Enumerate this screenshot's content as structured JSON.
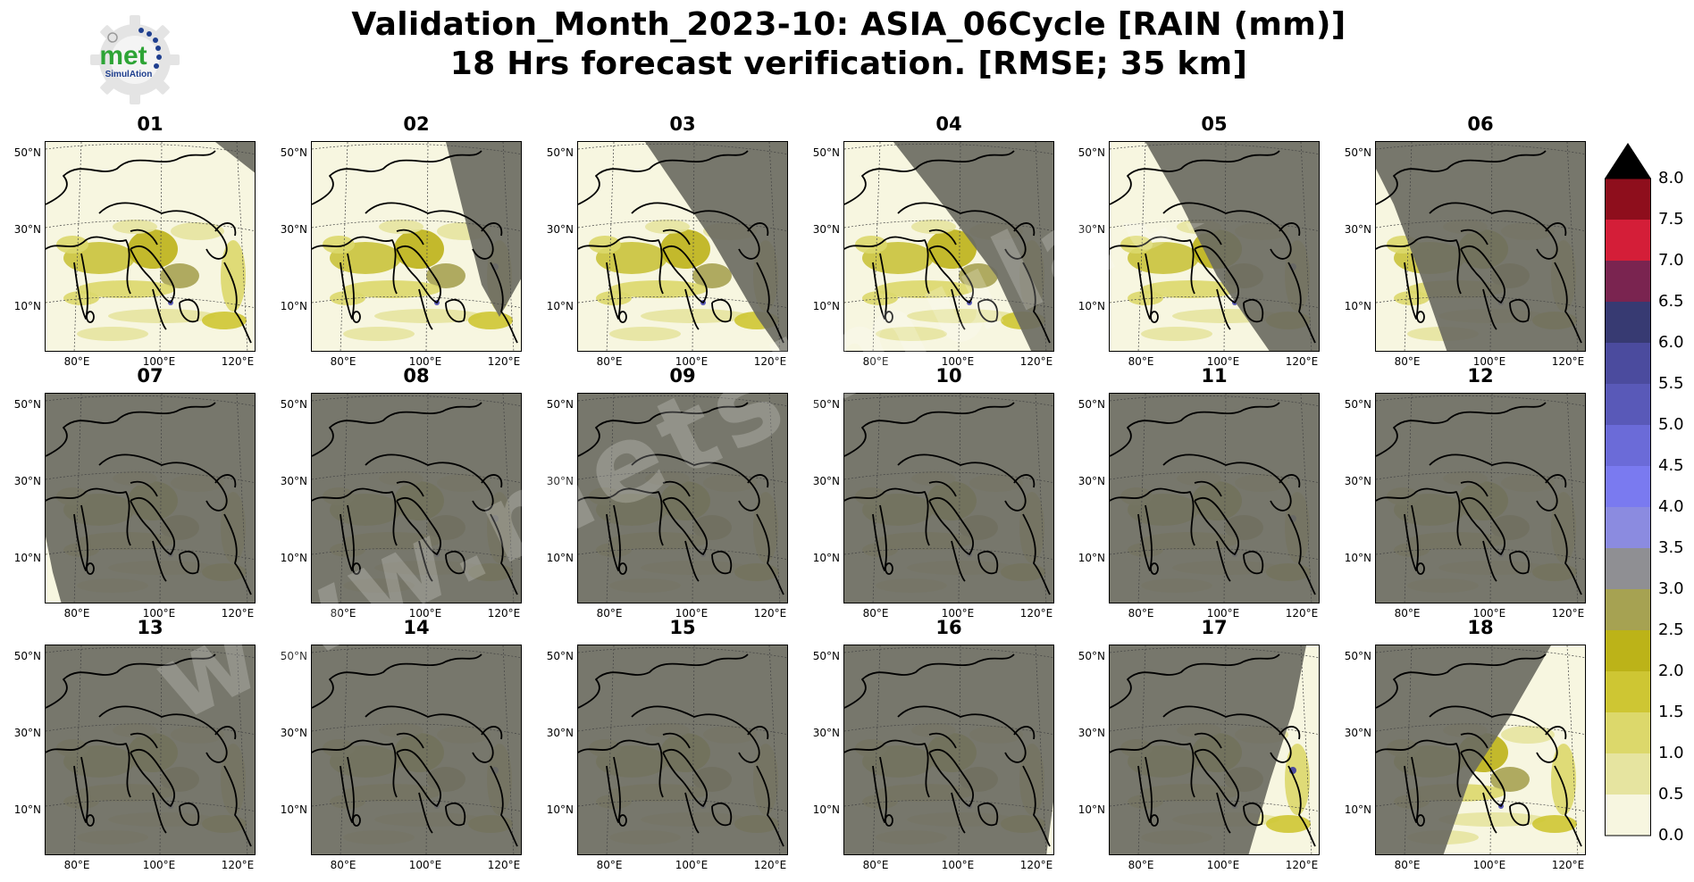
{
  "logo": {
    "word": "met",
    "subword": "SimulAtion",
    "icon": "gear-logo-icon"
  },
  "title": {
    "line1": "Validation_Month_2023-10: ASIA_06Cycle [RAIN (mm)]",
    "line2": "18 Hrs forecast verification.  [RMSE; 35 km]"
  },
  "axes": {
    "lat_labels": [
      "50°N",
      "30°N",
      "10°N"
    ],
    "lon_labels": [
      "80°E",
      "100°E",
      "120°E"
    ]
  },
  "panels": [
    {
      "label": "01",
      "night": "ne_corner"
    },
    {
      "label": "02",
      "night": "ne_wedge"
    },
    {
      "label": "03",
      "night": "east_wedge"
    },
    {
      "label": "04",
      "night": "east_half"
    },
    {
      "label": "05",
      "night": "most_east"
    },
    {
      "label": "06",
      "night": "most"
    },
    {
      "label": "07",
      "night": "all_but_sw"
    },
    {
      "label": "08",
      "night": "all"
    },
    {
      "label": "09",
      "night": "all"
    },
    {
      "label": "10",
      "night": "all"
    },
    {
      "label": "11",
      "night": "all"
    },
    {
      "label": "12",
      "night": "all"
    },
    {
      "label": "13",
      "night": "all"
    },
    {
      "label": "14",
      "night": "all"
    },
    {
      "label": "15",
      "night": "all"
    },
    {
      "label": "16",
      "night": "all_but_se_sliver"
    },
    {
      "label": "17",
      "night": "all_but_se_wedge"
    },
    {
      "label": "18",
      "night": "all_but_se_half"
    }
  ],
  "colorbar": {
    "ticks": [
      "8.0",
      "7.5",
      "7.0",
      "6.5",
      "6.0",
      "5.5",
      "5.0",
      "4.5",
      "4.0",
      "3.5",
      "3.0",
      "2.5",
      "2.0",
      "1.5",
      "1.0",
      "0.5",
      "0.0"
    ],
    "colors": [
      "#f7f6e0",
      "#e6e4a0",
      "#dcd86b",
      "#cec633",
      "#bcb318",
      "#a6a252",
      "#8f8f93",
      "#8b8be0",
      "#7a7af0",
      "#6b6bd8",
      "#5959b8",
      "#4b4b9e",
      "#373a72",
      "#7a2450",
      "#d41e38",
      "#8e0e1c"
    ],
    "extend_color": "#000000"
  },
  "watermark": "www.metsimulation.com"
}
